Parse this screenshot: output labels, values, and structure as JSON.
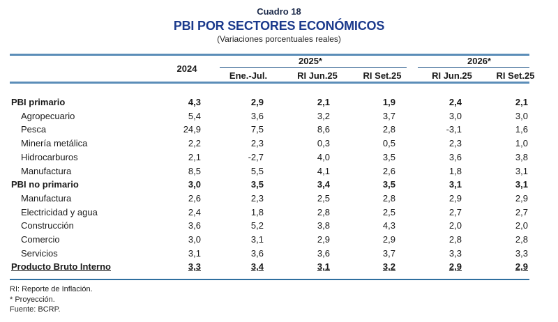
{
  "header": {
    "cuadro": "Cuadro 18",
    "title": "PBI POR SECTORES ECONÓMICOS",
    "subtitle": "(Variaciones porcentuales reales)"
  },
  "columns": {
    "year_2024": "2024",
    "group_2025": "2025*",
    "group_2026": "2026*",
    "sub": [
      "Ene.-Jul.",
      "RI Jun.25",
      "RI Set.25",
      "RI Jun.25",
      "RI Set.25"
    ]
  },
  "rows": [
    {
      "label": "PBI primario",
      "type": "bold",
      "values": [
        "4,3",
        "2,9",
        "2,1",
        "1,9",
        "2,4",
        "2,1"
      ]
    },
    {
      "label": "Agropecuario",
      "type": "sub",
      "values": [
        "5,4",
        "3,6",
        "3,2",
        "3,7",
        "3,0",
        "3,0"
      ]
    },
    {
      "label": "Pesca",
      "type": "sub",
      "values": [
        "24,9",
        "7,5",
        "8,6",
        "2,8",
        "-3,1",
        "1,6"
      ]
    },
    {
      "label": "Minería metálica",
      "type": "sub",
      "values": [
        "2,2",
        "2,3",
        "0,3",
        "0,5",
        "2,3",
        "1,0"
      ]
    },
    {
      "label": "Hidrocarburos",
      "type": "sub",
      "values": [
        "2,1",
        "-2,7",
        "4,0",
        "3,5",
        "3,6",
        "3,8"
      ]
    },
    {
      "label": "Manufactura",
      "type": "sub",
      "values": [
        "8,5",
        "5,5",
        "4,1",
        "2,6",
        "1,8",
        "3,1"
      ]
    },
    {
      "label": "PBI no primario",
      "type": "bold",
      "values": [
        "3,0",
        "3,5",
        "3,4",
        "3,5",
        "3,1",
        "3,1"
      ]
    },
    {
      "label": "Manufactura",
      "type": "sub",
      "values": [
        "2,6",
        "2,3",
        "2,5",
        "2,8",
        "2,9",
        "2,9"
      ]
    },
    {
      "label": "Electricidad y agua",
      "type": "sub",
      "values": [
        "2,4",
        "1,8",
        "2,8",
        "2,5",
        "2,7",
        "2,7"
      ]
    },
    {
      "label": "Construcción",
      "type": "sub",
      "values": [
        "3,6",
        "5,2",
        "3,8",
        "4,3",
        "2,0",
        "2,0"
      ]
    },
    {
      "label": "Comercio",
      "type": "sub",
      "values": [
        "3,0",
        "3,1",
        "2,9",
        "2,9",
        "2,8",
        "2,8"
      ]
    },
    {
      "label": "Servicios",
      "type": "sub",
      "values": [
        "3,1",
        "3,6",
        "3,6",
        "3,7",
        "3,3",
        "3,3"
      ]
    },
    {
      "label": "Producto Bruto Interno",
      "type": "bold total",
      "values": [
        "3,3",
        "3,4",
        "3,1",
        "3,2",
        "2,9",
        "2,9"
      ]
    }
  ],
  "notes": [
    "RI: Reporte de Inflación.",
    "* Proyección.",
    "Fuente: BCRP."
  ]
}
